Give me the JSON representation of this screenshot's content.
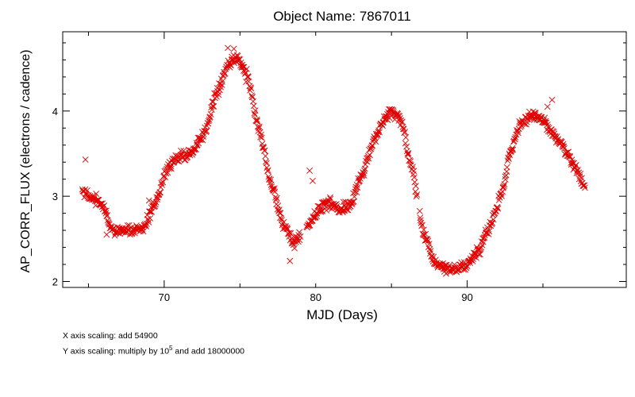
{
  "chart_data": {
    "type": "scatter",
    "title": "Object Name:  7867011",
    "xlabel": "MJD (Days)",
    "ylabel": "AP_CORR_FLUX (electrons / cadence)",
    "xlim": [
      63.3,
      100.5
    ],
    "ylim": [
      1.93,
      4.93
    ],
    "x_ticks": [
      70,
      90
    ],
    "x_tick_labels": [
      "70",
      "90"
    ],
    "x_minor_ticks": [
      65,
      75,
      80,
      85,
      95
    ],
    "x_label_80": "80",
    "y_ticks": [
      2,
      3,
      4
    ],
    "y_tick_labels": [
      "2",
      "3",
      "4"
    ],
    "marker": "x",
    "marker_color": "#e00000",
    "grid": false,
    "legend": "none",
    "curve_knots": {
      "x": [
        64.6,
        65.3,
        65.9,
        66.7,
        67.7,
        68.6,
        69.4,
        70.1,
        70.8,
        71.7,
        72.6,
        73.5,
        74.2,
        74.8,
        75.5,
        76.3,
        77.1,
        77.9,
        78.5,
        79.3,
        80.0,
        80.8,
        81.6,
        82.3,
        83.0,
        83.8,
        84.5,
        85.1,
        85.6,
        86.3,
        87.1,
        87.9,
        88.6,
        89.3,
        90.0,
        90.7,
        91.4,
        92.2,
        92.9,
        93.6,
        94.3,
        95.0,
        95.7,
        96.4,
        97.1,
        97.8
      ],
      "y": [
        3.05,
        2.98,
        2.9,
        2.58,
        2.6,
        2.62,
        2.9,
        3.28,
        3.45,
        3.5,
        3.72,
        4.22,
        4.55,
        4.62,
        4.4,
        3.75,
        3.12,
        2.66,
        2.45,
        2.62,
        2.8,
        2.92,
        2.85,
        2.9,
        3.22,
        3.62,
        3.9,
        3.98,
        3.9,
        3.38,
        2.58,
        2.22,
        2.15,
        2.16,
        2.2,
        2.35,
        2.6,
        3.0,
        3.55,
        3.88,
        3.95,
        3.9,
        3.72,
        3.55,
        3.35,
        3.08
      ]
    },
    "outliers": {
      "x": [
        64.8,
        79.6,
        79.8,
        78.3,
        95.6,
        95.3,
        74.6,
        74.2,
        66.2,
        69.0
      ],
      "y": [
        3.43,
        3.3,
        3.18,
        2.24,
        4.13,
        4.05,
        4.73,
        4.74,
        2.55,
        2.95
      ]
    }
  },
  "notes": {
    "x_scaling": "X axis scaling: add 54900",
    "y_scaling_prefix": "Y axis scaling: multiply by 10",
    "y_scaling_exp": "5",
    "y_scaling_suffix": " and add 18000000"
  }
}
